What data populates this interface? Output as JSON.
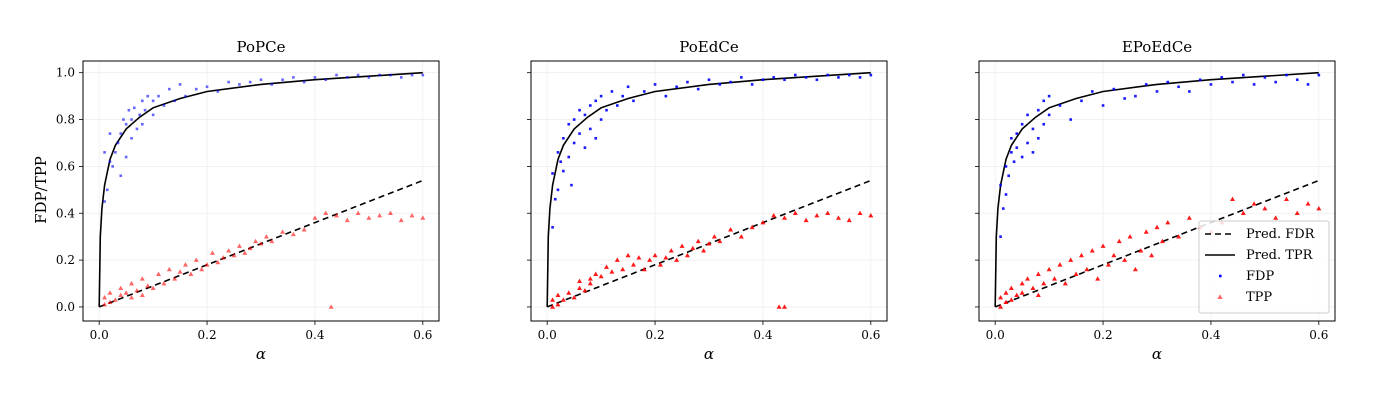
{
  "figure": {
    "ylabel": "FDP/TPP",
    "legend": {
      "placement": "lower-right of third panel",
      "entries": [
        {
          "label": "Pred. FDR",
          "style": "dashed-line",
          "color": "#000000"
        },
        {
          "label": "Pred. TPR",
          "style": "solid-line",
          "color": "#000000"
        },
        {
          "label": "FDP",
          "style": "dot",
          "color": "#0000ff"
        },
        {
          "label": "TPP",
          "style": "triangle",
          "color": "#ff0000"
        }
      ]
    },
    "colors": {
      "fdp": "#0000ff",
      "tpp": "#ff0000",
      "prediction": "#000000",
      "grid": "#eeeeee"
    }
  },
  "chart_data": [
    {
      "type": "scatter",
      "title": "PoPCe",
      "xlabel": "α",
      "ylabel": "FDP/TPP",
      "xlim": [
        -0.03,
        0.63
      ],
      "ylim": [
        -0.06,
        1.05
      ],
      "xticks": [
        "0.0",
        "0.2",
        "0.4",
        "0.6"
      ],
      "yticks": [
        "0.0",
        "0.2",
        "0.4",
        "0.6",
        "0.8",
        "1.0"
      ],
      "grid": true,
      "point_opacity": 0.6,
      "series": [
        {
          "name": "Pred. FDR",
          "kind": "line",
          "dash": true,
          "x": [
            0.0,
            0.1,
            0.2,
            0.3,
            0.4,
            0.5,
            0.6
          ],
          "y": [
            0.0,
            0.09,
            0.18,
            0.27,
            0.36,
            0.45,
            0.54
          ]
        },
        {
          "name": "Pred. TPR",
          "kind": "line",
          "dash": false,
          "x": [
            0.0,
            0.002,
            0.005,
            0.01,
            0.02,
            0.03,
            0.05,
            0.075,
            0.1,
            0.15,
            0.2,
            0.3,
            0.4,
            0.5,
            0.6
          ],
          "y": [
            0.0,
            0.3,
            0.42,
            0.52,
            0.63,
            0.69,
            0.76,
            0.81,
            0.85,
            0.89,
            0.92,
            0.95,
            0.97,
            0.985,
            1.0
          ]
        },
        {
          "name": "FDP",
          "kind": "points",
          "x": [
            0.01,
            0.01,
            0.015,
            0.02,
            0.02,
            0.025,
            0.03,
            0.035,
            0.04,
            0.04,
            0.045,
            0.05,
            0.05,
            0.055,
            0.06,
            0.06,
            0.065,
            0.07,
            0.075,
            0.08,
            0.08,
            0.085,
            0.09,
            0.1,
            0.1,
            0.11,
            0.12,
            0.13,
            0.14,
            0.15,
            0.16,
            0.18,
            0.2,
            0.22,
            0.24,
            0.26,
            0.28,
            0.3,
            0.32,
            0.34,
            0.36,
            0.38,
            0.4,
            0.42,
            0.44,
            0.46,
            0.48,
            0.5,
            0.52,
            0.54,
            0.56,
            0.58,
            0.6
          ],
          "y": [
            0.45,
            0.66,
            0.5,
            0.74,
            0.62,
            0.6,
            0.66,
            0.7,
            0.56,
            0.74,
            0.8,
            0.64,
            0.78,
            0.84,
            0.72,
            0.8,
            0.85,
            0.76,
            0.82,
            0.88,
            0.78,
            0.84,
            0.9,
            0.82,
            0.88,
            0.9,
            0.86,
            0.93,
            0.88,
            0.95,
            0.9,
            0.93,
            0.94,
            0.92,
            0.96,
            0.95,
            0.96,
            0.97,
            0.95,
            0.97,
            0.98,
            0.96,
            0.98,
            0.97,
            0.99,
            0.98,
            0.99,
            0.98,
            0.99,
            0.99,
            0.98,
            0.99,
            0.99
          ]
        },
        {
          "name": "TPP",
          "kind": "points",
          "x": [
            0.01,
            0.01,
            0.02,
            0.02,
            0.03,
            0.04,
            0.04,
            0.05,
            0.06,
            0.06,
            0.07,
            0.08,
            0.08,
            0.09,
            0.1,
            0.11,
            0.12,
            0.13,
            0.14,
            0.15,
            0.16,
            0.17,
            0.18,
            0.19,
            0.2,
            0.21,
            0.22,
            0.23,
            0.24,
            0.25,
            0.26,
            0.27,
            0.28,
            0.29,
            0.3,
            0.31,
            0.32,
            0.34,
            0.36,
            0.38,
            0.4,
            0.42,
            0.43,
            0.44,
            0.46,
            0.48,
            0.5,
            0.52,
            0.54,
            0.56,
            0.58,
            0.6
          ],
          "y": [
            0.01,
            0.04,
            0.02,
            0.06,
            0.03,
            0.05,
            0.08,
            0.06,
            0.04,
            0.1,
            0.07,
            0.05,
            0.12,
            0.09,
            0.08,
            0.14,
            0.1,
            0.16,
            0.12,
            0.15,
            0.18,
            0.14,
            0.2,
            0.16,
            0.18,
            0.23,
            0.19,
            0.21,
            0.24,
            0.22,
            0.26,
            0.23,
            0.25,
            0.28,
            0.27,
            0.3,
            0.28,
            0.32,
            0.31,
            0.33,
            0.38,
            0.4,
            0.0,
            0.39,
            0.37,
            0.4,
            0.38,
            0.39,
            0.4,
            0.37,
            0.39,
            0.38
          ]
        }
      ]
    },
    {
      "type": "scatter",
      "title": "PoEdCe",
      "xlabel": "α",
      "xlim": [
        -0.03,
        0.63
      ],
      "ylim": [
        -0.06,
        1.05
      ],
      "xticks": [
        "0.0",
        "0.2",
        "0.4",
        "0.6"
      ],
      "grid": true,
      "point_opacity": 0.9,
      "series": [
        {
          "name": "Pred. FDR",
          "kind": "line",
          "dash": true,
          "x": [
            0.0,
            0.1,
            0.2,
            0.3,
            0.4,
            0.5,
            0.6
          ],
          "y": [
            0.0,
            0.09,
            0.18,
            0.27,
            0.36,
            0.45,
            0.54
          ]
        },
        {
          "name": "Pred. TPR",
          "kind": "line",
          "dash": false,
          "x": [
            0.0,
            0.002,
            0.005,
            0.01,
            0.02,
            0.03,
            0.05,
            0.075,
            0.1,
            0.15,
            0.2,
            0.3,
            0.4,
            0.5,
            0.6
          ],
          "y": [
            0.0,
            0.3,
            0.42,
            0.52,
            0.63,
            0.69,
            0.76,
            0.81,
            0.85,
            0.89,
            0.92,
            0.95,
            0.97,
            0.985,
            1.0
          ]
        },
        {
          "name": "FDP",
          "kind": "points",
          "x": [
            0.01,
            0.01,
            0.015,
            0.02,
            0.02,
            0.025,
            0.03,
            0.03,
            0.04,
            0.04,
            0.045,
            0.05,
            0.05,
            0.06,
            0.06,
            0.07,
            0.07,
            0.08,
            0.08,
            0.09,
            0.09,
            0.1,
            0.1,
            0.11,
            0.12,
            0.13,
            0.14,
            0.15,
            0.16,
            0.18,
            0.2,
            0.22,
            0.24,
            0.26,
            0.28,
            0.3,
            0.32,
            0.34,
            0.36,
            0.38,
            0.4,
            0.42,
            0.44,
            0.46,
            0.48,
            0.5,
            0.52,
            0.54,
            0.56,
            0.58,
            0.6
          ],
          "y": [
            0.34,
            0.57,
            0.46,
            0.5,
            0.66,
            0.62,
            0.72,
            0.58,
            0.78,
            0.64,
            0.52,
            0.7,
            0.8,
            0.74,
            0.84,
            0.68,
            0.82,
            0.76,
            0.86,
            0.72,
            0.88,
            0.8,
            0.9,
            0.84,
            0.92,
            0.86,
            0.9,
            0.94,
            0.88,
            0.92,
            0.95,
            0.9,
            0.94,
            0.96,
            0.93,
            0.97,
            0.95,
            0.96,
            0.98,
            0.95,
            0.97,
            0.98,
            0.97,
            0.99,
            0.98,
            0.97,
            0.99,
            0.98,
            0.99,
            0.98,
            0.99
          ]
        },
        {
          "name": "TPP",
          "kind": "points",
          "x": [
            0.01,
            0.01,
            0.02,
            0.02,
            0.03,
            0.04,
            0.05,
            0.06,
            0.06,
            0.07,
            0.08,
            0.08,
            0.09,
            0.1,
            0.11,
            0.12,
            0.13,
            0.14,
            0.15,
            0.16,
            0.17,
            0.18,
            0.19,
            0.2,
            0.21,
            0.22,
            0.23,
            0.24,
            0.25,
            0.26,
            0.27,
            0.28,
            0.29,
            0.3,
            0.31,
            0.32,
            0.34,
            0.36,
            0.38,
            0.4,
            0.42,
            0.43,
            0.44,
            0.44,
            0.46,
            0.48,
            0.5,
            0.52,
            0.54,
            0.56,
            0.58,
            0.6
          ],
          "y": [
            0.0,
            0.03,
            0.01,
            0.05,
            0.03,
            0.06,
            0.04,
            0.08,
            0.11,
            0.07,
            0.12,
            0.1,
            0.14,
            0.13,
            0.17,
            0.15,
            0.2,
            0.16,
            0.22,
            0.18,
            0.21,
            0.16,
            0.2,
            0.22,
            0.18,
            0.21,
            0.24,
            0.2,
            0.26,
            0.22,
            0.25,
            0.28,
            0.24,
            0.27,
            0.3,
            0.28,
            0.33,
            0.3,
            0.34,
            0.36,
            0.39,
            0.0,
            0.0,
            0.38,
            0.4,
            0.37,
            0.39,
            0.4,
            0.38,
            0.37,
            0.4,
            0.39
          ]
        }
      ]
    },
    {
      "type": "scatter",
      "title": "EPoEdCe",
      "xlabel": "α",
      "xlim": [
        -0.03,
        0.63
      ],
      "ylim": [
        -0.06,
        1.05
      ],
      "xticks": [
        "0.0",
        "0.2",
        "0.4",
        "0.6"
      ],
      "grid": true,
      "point_opacity": 0.9,
      "series": [
        {
          "name": "Pred. FDR",
          "kind": "line",
          "dash": true,
          "x": [
            0.0,
            0.1,
            0.2,
            0.3,
            0.4,
            0.5,
            0.6
          ],
          "y": [
            0.0,
            0.09,
            0.18,
            0.27,
            0.36,
            0.45,
            0.54
          ]
        },
        {
          "name": "Pred. TPR",
          "kind": "line",
          "dash": false,
          "x": [
            0.0,
            0.002,
            0.005,
            0.01,
            0.02,
            0.03,
            0.05,
            0.075,
            0.1,
            0.15,
            0.2,
            0.3,
            0.4,
            0.5,
            0.6
          ],
          "y": [
            0.0,
            0.3,
            0.42,
            0.52,
            0.63,
            0.69,
            0.76,
            0.81,
            0.85,
            0.89,
            0.92,
            0.95,
            0.97,
            0.985,
            1.0
          ]
        },
        {
          "name": "FDP",
          "kind": "points",
          "x": [
            0.01,
            0.01,
            0.015,
            0.02,
            0.02,
            0.025,
            0.03,
            0.03,
            0.035,
            0.04,
            0.04,
            0.05,
            0.05,
            0.06,
            0.06,
            0.07,
            0.07,
            0.08,
            0.08,
            0.09,
            0.09,
            0.1,
            0.1,
            0.12,
            0.14,
            0.16,
            0.18,
            0.2,
            0.22,
            0.24,
            0.26,
            0.28,
            0.3,
            0.32,
            0.34,
            0.36,
            0.38,
            0.4,
            0.42,
            0.44,
            0.46,
            0.48,
            0.5,
            0.52,
            0.54,
            0.56,
            0.58,
            0.6
          ],
          "y": [
            0.3,
            0.52,
            0.42,
            0.6,
            0.48,
            0.56,
            0.66,
            0.72,
            0.62,
            0.74,
            0.68,
            0.78,
            0.64,
            0.7,
            0.82,
            0.76,
            0.66,
            0.84,
            0.72,
            0.88,
            0.78,
            0.82,
            0.9,
            0.86,
            0.8,
            0.88,
            0.92,
            0.86,
            0.93,
            0.89,
            0.9,
            0.95,
            0.92,
            0.96,
            0.94,
            0.92,
            0.97,
            0.95,
            0.98,
            0.96,
            0.99,
            0.95,
            0.98,
            0.96,
            0.99,
            0.97,
            0.95,
            0.99
          ]
        },
        {
          "name": "TPP",
          "kind": "points",
          "x": [
            0.01,
            0.01,
            0.02,
            0.02,
            0.03,
            0.03,
            0.04,
            0.05,
            0.05,
            0.06,
            0.07,
            0.08,
            0.08,
            0.09,
            0.1,
            0.11,
            0.12,
            0.13,
            0.14,
            0.15,
            0.16,
            0.17,
            0.18,
            0.19,
            0.2,
            0.21,
            0.22,
            0.23,
            0.24,
            0.25,
            0.26,
            0.27,
            0.28,
            0.29,
            0.3,
            0.31,
            0.32,
            0.34,
            0.36,
            0.38,
            0.4,
            0.42,
            0.44,
            0.46,
            0.48,
            0.5,
            0.52,
            0.54,
            0.56,
            0.58,
            0.6
          ],
          "y": [
            0.0,
            0.04,
            0.02,
            0.06,
            0.08,
            0.03,
            0.05,
            0.1,
            0.06,
            0.12,
            0.08,
            0.14,
            0.05,
            0.1,
            0.16,
            0.12,
            0.18,
            0.1,
            0.2,
            0.14,
            0.22,
            0.16,
            0.24,
            0.12,
            0.26,
            0.18,
            0.22,
            0.28,
            0.2,
            0.3,
            0.16,
            0.24,
            0.32,
            0.22,
            0.34,
            0.28,
            0.36,
            0.3,
            0.38,
            0.34,
            0.32,
            0.36,
            0.46,
            0.4,
            0.44,
            0.42,
            0.38,
            0.46,
            0.4,
            0.44,
            0.42
          ]
        }
      ]
    }
  ]
}
